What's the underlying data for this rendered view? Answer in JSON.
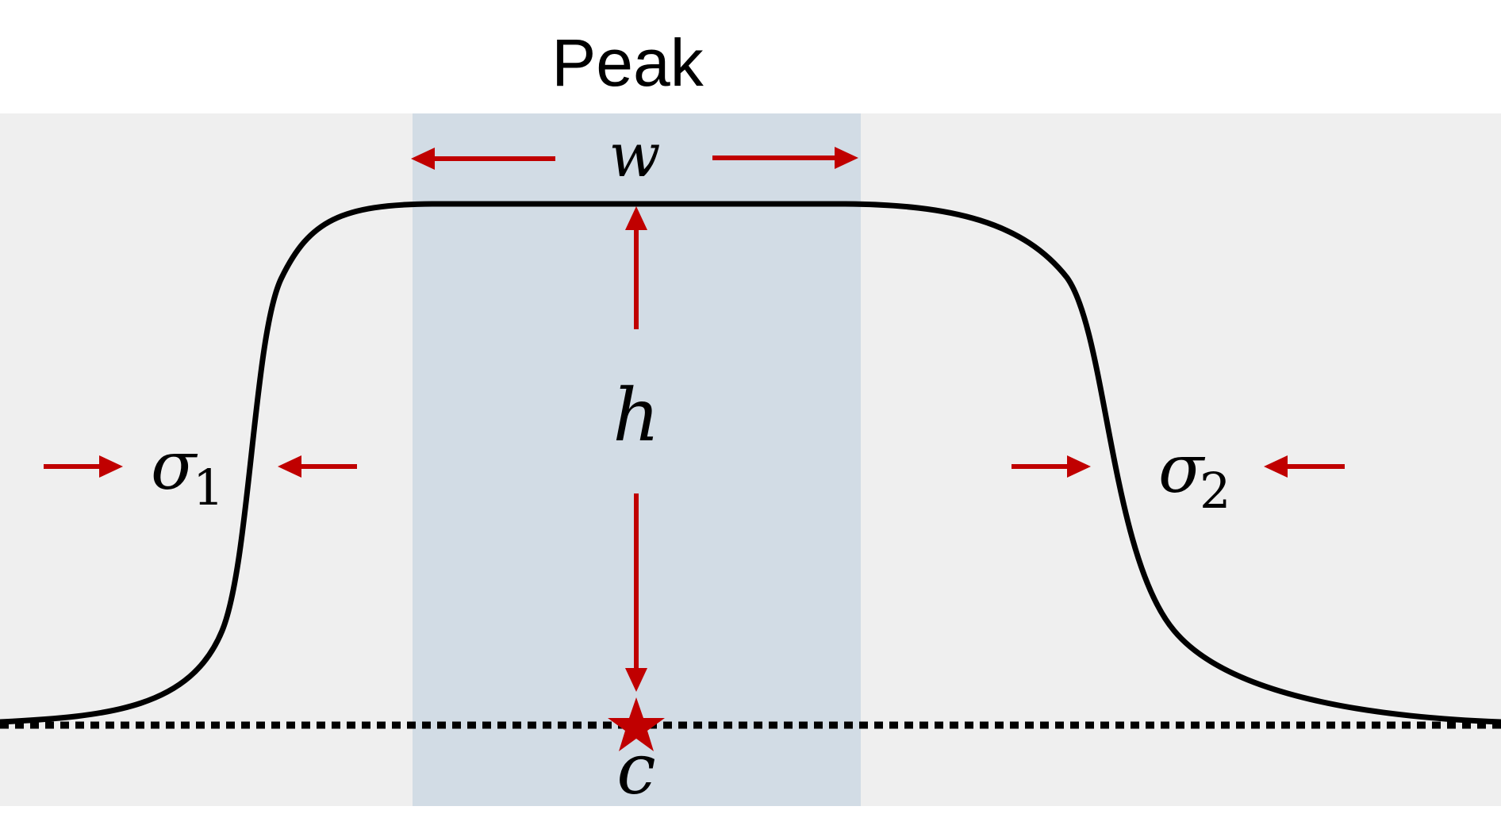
{
  "title": "Peak",
  "labels": {
    "width": "w",
    "height": "h",
    "baseline": "c",
    "sigma_left": "σ",
    "sigma_left_sub": "1",
    "sigma_right": "σ",
    "sigma_right_sub": "2"
  },
  "colors": {
    "side_region": "#efefef",
    "peak_region": "#d2dce5",
    "curve": "#000000",
    "arrows": "#c00000",
    "marker": "#c00000"
  },
  "icons": {
    "baseline_marker": "star-icon"
  }
}
